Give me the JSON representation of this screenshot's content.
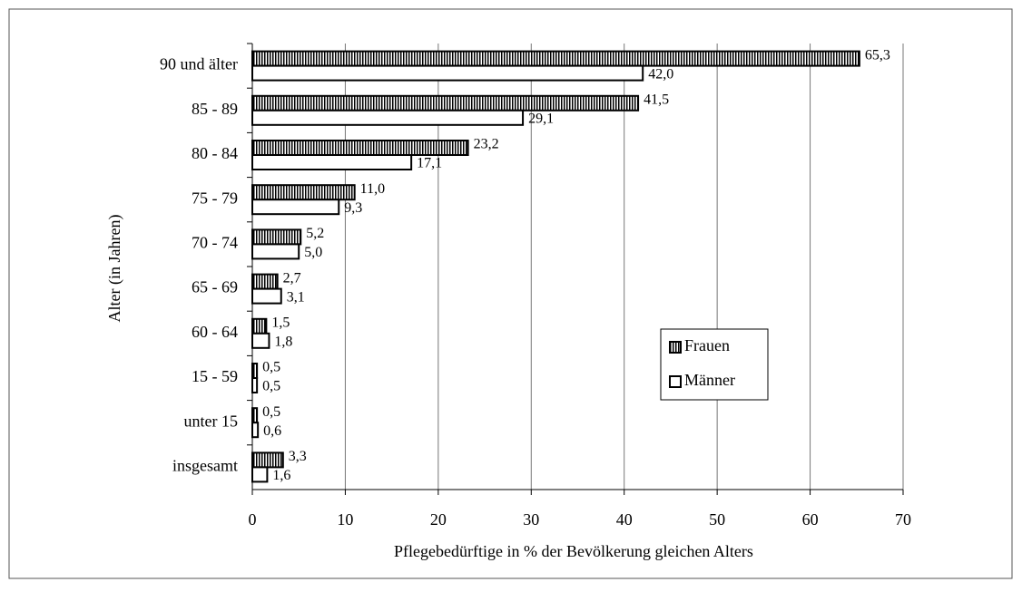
{
  "chart_data": {
    "type": "bar",
    "orientation": "horizontal",
    "x_label": "Pflegebedürftige in % der Bevölkerung gleichen Alters",
    "y_label": "Alter (in Jahren)",
    "categories": [
      "90 und älter",
      "85 - 89",
      "80 - 84",
      "75 - 79",
      "70 - 74",
      "65 - 69",
      "60 - 64",
      "15 - 59",
      "unter 15",
      "insgesamt"
    ],
    "series": [
      {
        "name": "Frauen",
        "color": "#000000",
        "pattern": "vertical-stripes",
        "values": [
          65.3,
          41.5,
          23.2,
          11.0,
          5.2,
          2.7,
          1.5,
          0.5,
          0.5,
          3.3
        ],
        "value_labels": [
          "65,3",
          "41,5",
          "23,2",
          "11,0",
          "5,2",
          "2,7",
          "1,5",
          "0,5",
          "0,5",
          "3,3"
        ]
      },
      {
        "name": "Männer",
        "color": "#ffffff",
        "pattern": "none",
        "values": [
          42.0,
          29.1,
          17.1,
          9.3,
          5.0,
          3.1,
          1.8,
          0.5,
          0.6,
          1.6
        ],
        "value_labels": [
          "42,0",
          "29,1",
          "17,1",
          "9,3",
          "5,0",
          "3,1",
          "1,8",
          "0,5",
          "0,6",
          "1,6"
        ]
      }
    ],
    "xlim": [
      0,
      70
    ],
    "xticks": [
      0,
      10,
      20,
      30,
      40,
      50,
      60,
      70
    ],
    "grid": true,
    "legend": "right"
  }
}
